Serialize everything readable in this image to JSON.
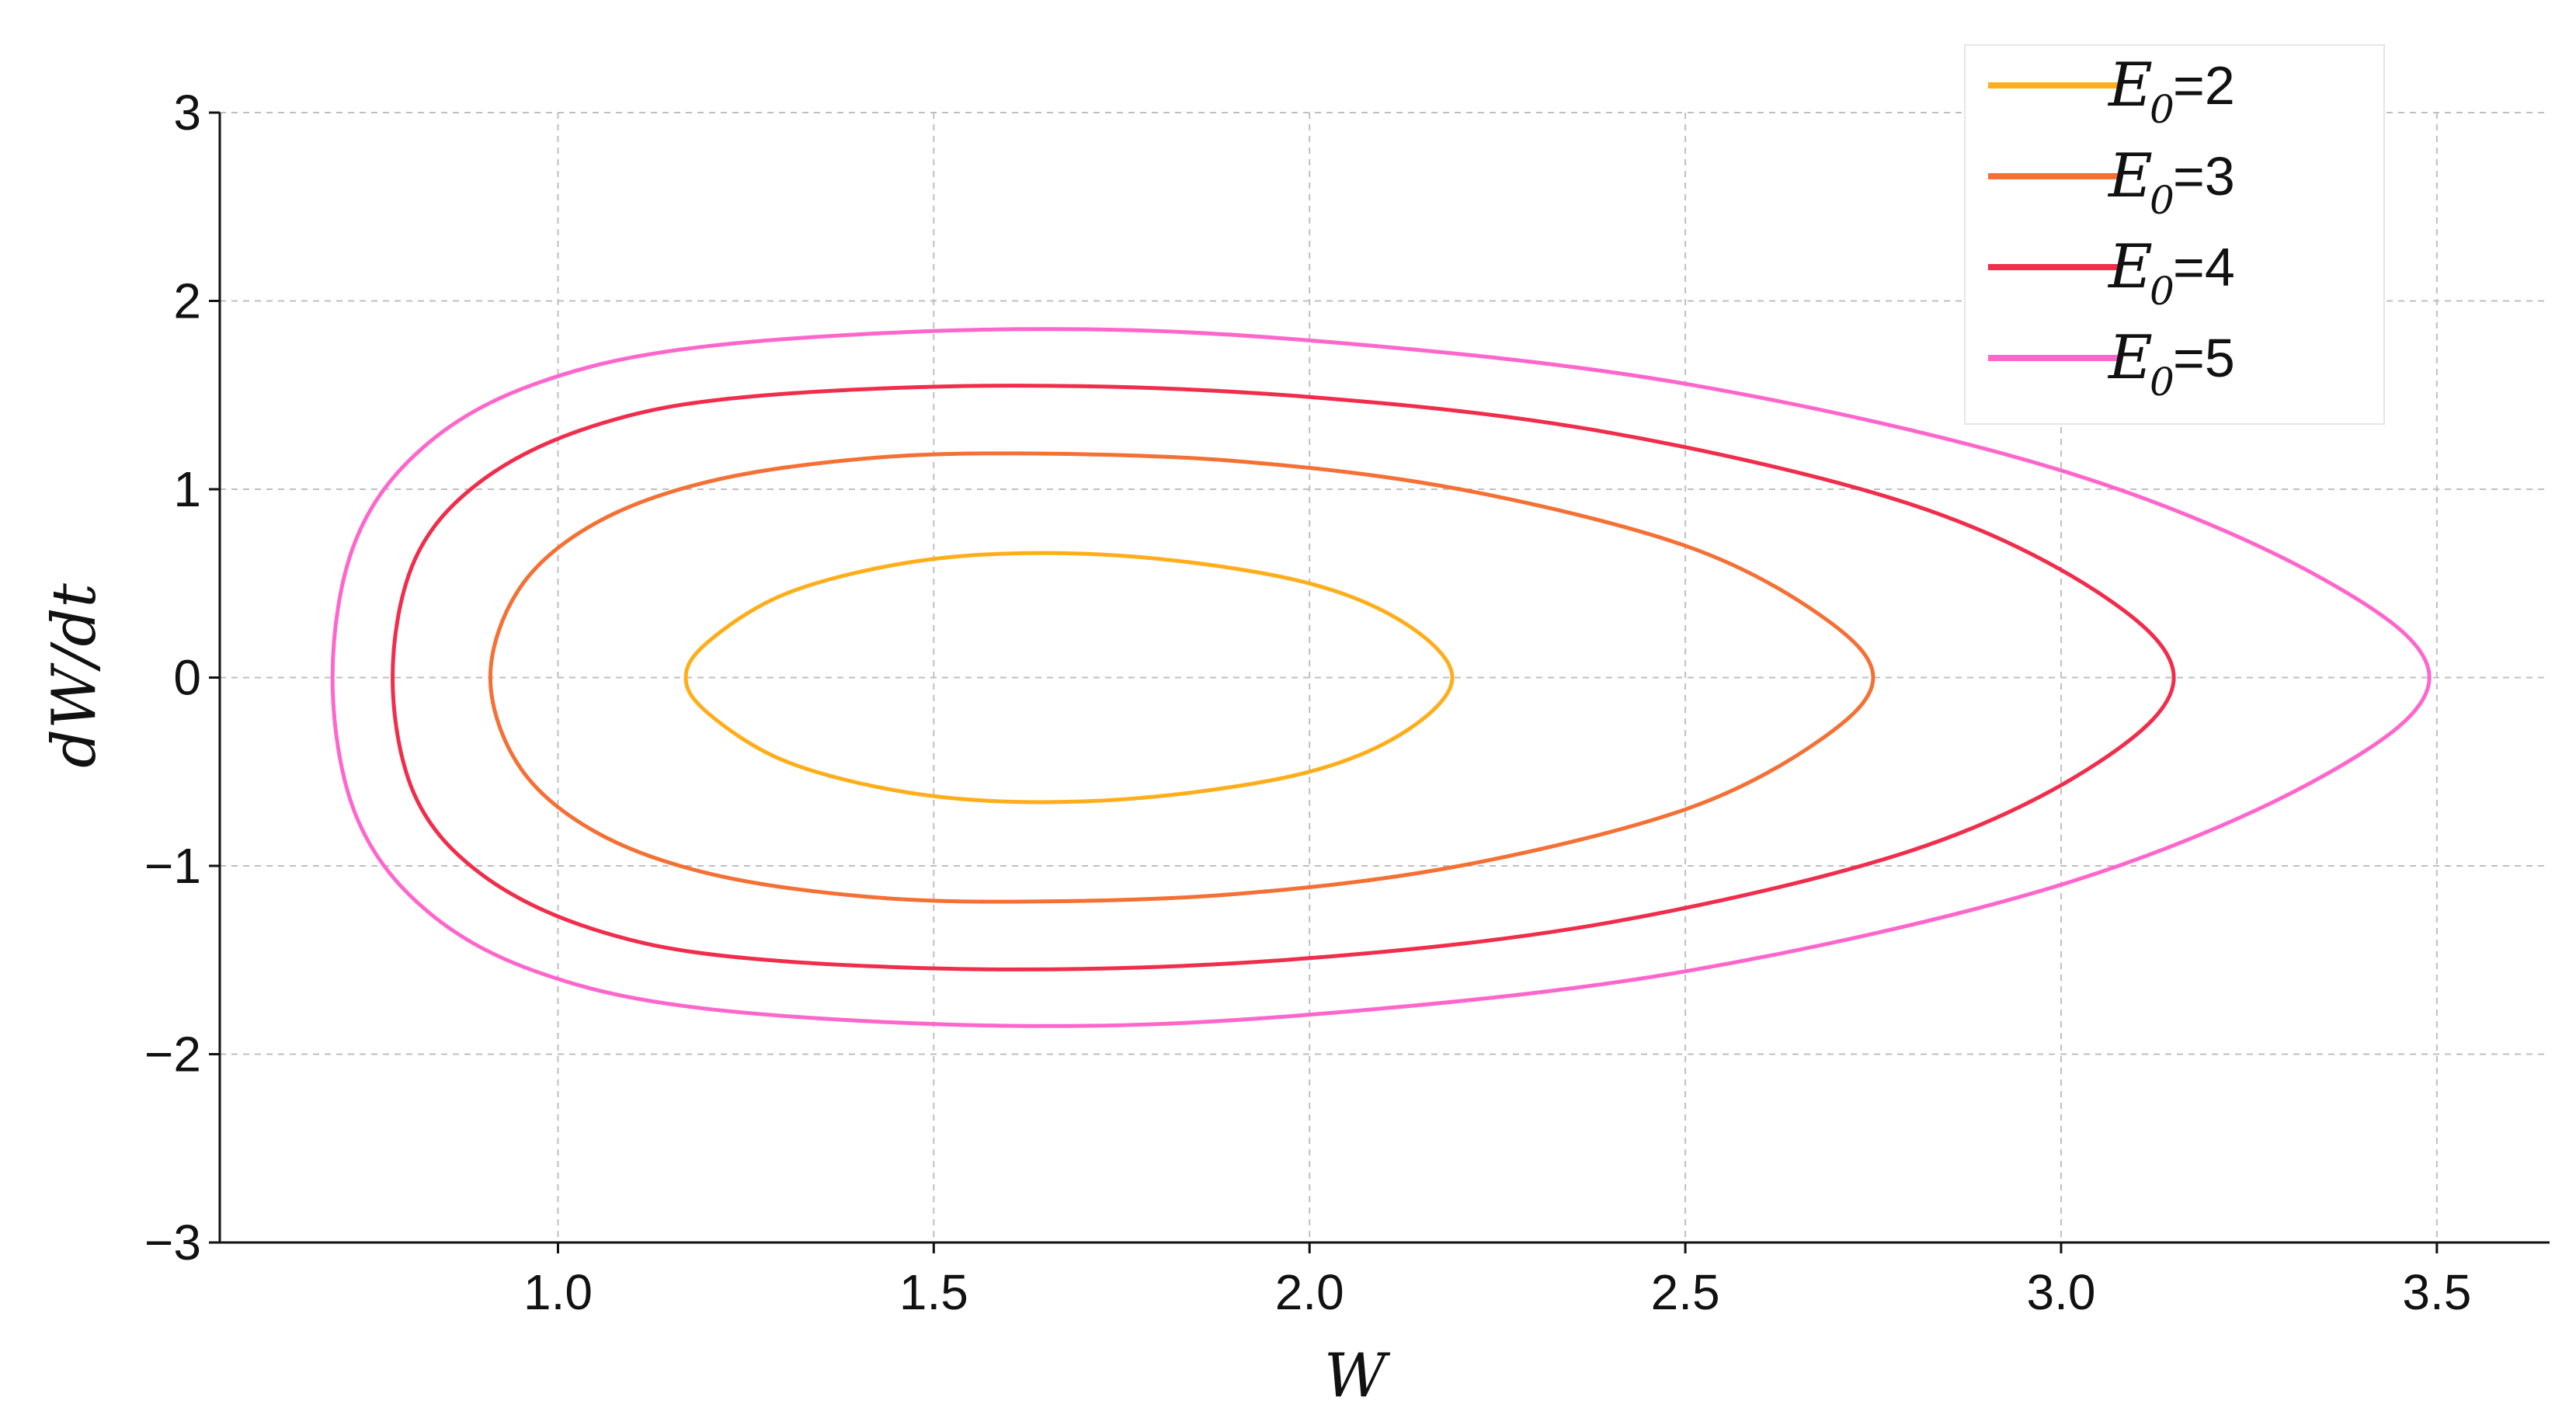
{
  "chart_data": {
    "type": "line",
    "title": "",
    "xlabel": "W",
    "ylabel": "dW/dt",
    "xlim": [
      0.55,
      3.65
    ],
    "ylim": [
      -3,
      3
    ],
    "x_ticks": [
      1.0,
      1.5,
      2.0,
      2.5,
      3.0,
      3.5
    ],
    "x_tick_labels": [
      "1.0",
      "1.5",
      "2.0",
      "2.5",
      "3.0",
      "3.5"
    ],
    "y_ticks": [
      -3,
      -2,
      -1,
      0,
      1,
      2,
      3
    ],
    "y_tick_labels": [
      "−3",
      "−2",
      "−1",
      "0",
      "1",
      "2",
      "3"
    ],
    "grid": true,
    "legend_position": "top-right",
    "series": [
      {
        "name": "E0 =2",
        "legend_symbol": "E",
        "legend_subscript": "0",
        "legend_value": " =2",
        "color": "#FFAE1A",
        "x": [
          1.17,
          1.2,
          1.3,
          1.45,
          1.61,
          1.8,
          2.0,
          2.13,
          2.19,
          2.13,
          2.0,
          1.8,
          1.61,
          1.45,
          1.3,
          1.2,
          1.17
        ],
        "y": [
          0.0,
          0.19,
          0.44,
          0.6,
          0.66,
          0.63,
          0.5,
          0.28,
          0.0,
          -0.28,
          -0.5,
          -0.63,
          -0.66,
          -0.6,
          -0.44,
          -0.19,
          0.0
        ]
      },
      {
        "name": "E0 =3",
        "legend_symbol": "E",
        "legend_subscript": "0",
        "legend_value": " =3",
        "color": "#F47034",
        "x": [
          0.91,
          0.95,
          1.05,
          1.2,
          1.4,
          1.61,
          1.9,
          2.2,
          2.5,
          2.68,
          2.75,
          2.68,
          2.5,
          2.2,
          1.9,
          1.61,
          1.4,
          1.2,
          1.05,
          0.95,
          0.91
        ],
        "y": [
          0.0,
          0.48,
          0.82,
          1.04,
          1.16,
          1.19,
          1.15,
          1.0,
          0.7,
          0.33,
          0.0,
          -0.33,
          -0.7,
          -1.0,
          -1.15,
          -1.19,
          -1.16,
          -1.04,
          -0.82,
          -0.48,
          0.0
        ]
      },
      {
        "name": "E0 =4",
        "legend_symbol": "E",
        "legend_subscript": "0",
        "legend_value": " =4",
        "color": "#F02D4B",
        "x": [
          0.78,
          0.81,
          0.9,
          1.05,
          1.25,
          1.61,
          2.0,
          2.4,
          2.8,
          3.05,
          3.15,
          3.05,
          2.8,
          2.4,
          2.0,
          1.61,
          1.25,
          1.05,
          0.9,
          0.81,
          0.78
        ],
        "y": [
          0.0,
          0.63,
          1.05,
          1.34,
          1.49,
          1.55,
          1.49,
          1.3,
          0.92,
          0.45,
          0.0,
          -0.45,
          -0.92,
          -1.3,
          -1.49,
          -1.55,
          -1.49,
          -1.34,
          -1.05,
          -0.63,
          0.0
        ]
      },
      {
        "name": "E0 =5",
        "legend_symbol": "E",
        "legend_subscript": "0",
        "legend_value": " =5",
        "color": "#FF66CC",
        "x": [
          0.7,
          0.73,
          0.82,
          0.97,
          1.2,
          1.61,
          2.0,
          2.5,
          3.0,
          3.35,
          3.49,
          3.35,
          3.0,
          2.5,
          2.0,
          1.61,
          1.2,
          0.97,
          0.82,
          0.73,
          0.7
        ],
        "y": [
          0.0,
          0.72,
          1.22,
          1.56,
          1.76,
          1.85,
          1.79,
          1.56,
          1.1,
          0.52,
          0.0,
          -0.52,
          -1.1,
          -1.56,
          -1.79,
          -1.85,
          -1.76,
          -1.56,
          -1.22,
          -0.72,
          0.0
        ]
      }
    ]
  },
  "colors": {
    "axis": "#111111",
    "grid": "#bfbfbf"
  }
}
